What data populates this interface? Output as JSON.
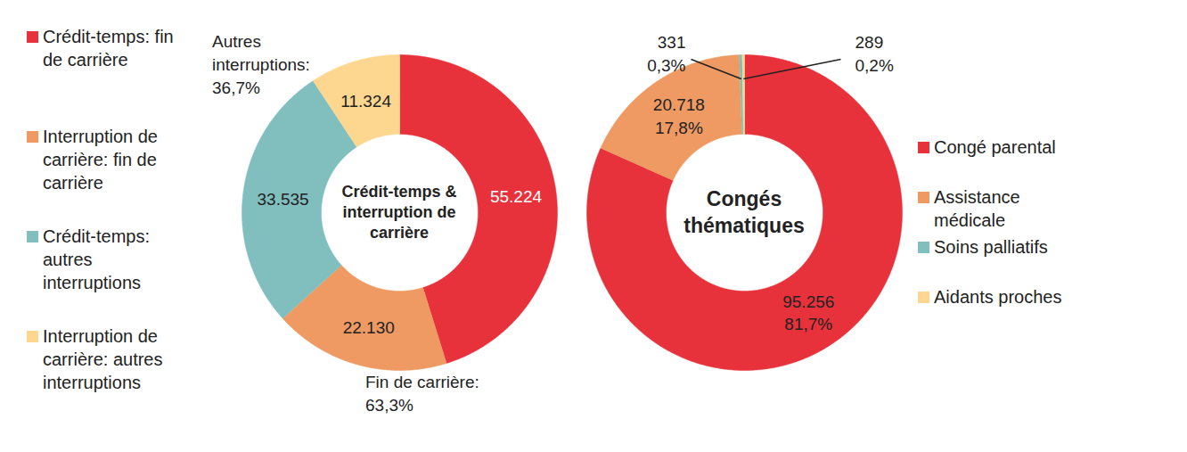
{
  "chart_data": [
    {
      "type": "pie",
      "title": "Crédit-temps & interruption de carrière",
      "categories": [
        "Crédit-temps: fin de carrière",
        "Interruption de carrière: fin de carrière",
        "Crédit-temps: autres interruptions",
        "Interruption de carrière: autres interruptions"
      ],
      "values": [
        55224,
        22130,
        33535,
        11324
      ],
      "value_labels": [
        "55.224",
        "22.130",
        "33.535",
        "11.324"
      ],
      "colors": [
        "#e7323b",
        "#ef9a62",
        "#80bfbe",
        "#fdd68f"
      ],
      "data_labels": true,
      "legend": "left",
      "annotations": [
        {
          "text": "Autres interruptions:",
          "value": 36.7,
          "label": "36,7%"
        },
        {
          "text": "Fin de carrière:",
          "value": 63.3,
          "label": "63,3%"
        }
      ]
    },
    {
      "type": "pie",
      "title": "Congés thématiques",
      "categories": [
        "Congé parental",
        "Assistance médicale",
        "Soins palliatifs",
        "Aidants proches"
      ],
      "values": [
        95256,
        20718,
        331,
        289
      ],
      "value_labels": [
        "95.256",
        "20.718",
        "331",
        "289"
      ],
      "percentages": [
        81.7,
        17.8,
        0.3,
        0.2
      ],
      "percent_labels": [
        "81,7%",
        "17,8%",
        "0,3%",
        "0,2%"
      ],
      "colors": [
        "#e7323b",
        "#ef9a62",
        "#80bfbe",
        "#fdd68f"
      ],
      "data_labels": true,
      "legend": "right"
    }
  ]
}
